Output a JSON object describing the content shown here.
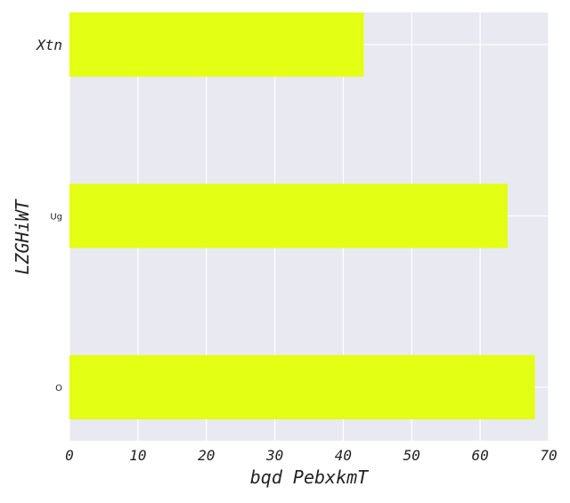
{
  "chart_data": {
    "type": "bar",
    "orientation": "horizontal",
    "categories": [
      "Xtn",
      "Ug",
      "O"
    ],
    "values": [
      43,
      64,
      68
    ],
    "xlabel": "bqd PebxkmT",
    "ylabel": "LZGHiWT",
    "xlim": [
      0,
      70
    ],
    "xticks": [
      "0",
      "10",
      "20",
      "30",
      "40",
      "50",
      "60",
      "70"
    ],
    "grid": true,
    "legend": "none",
    "colors": {
      "bar": "#e3ff14",
      "background": "#e9e9f1",
      "grid": "#ffffff"
    }
  }
}
